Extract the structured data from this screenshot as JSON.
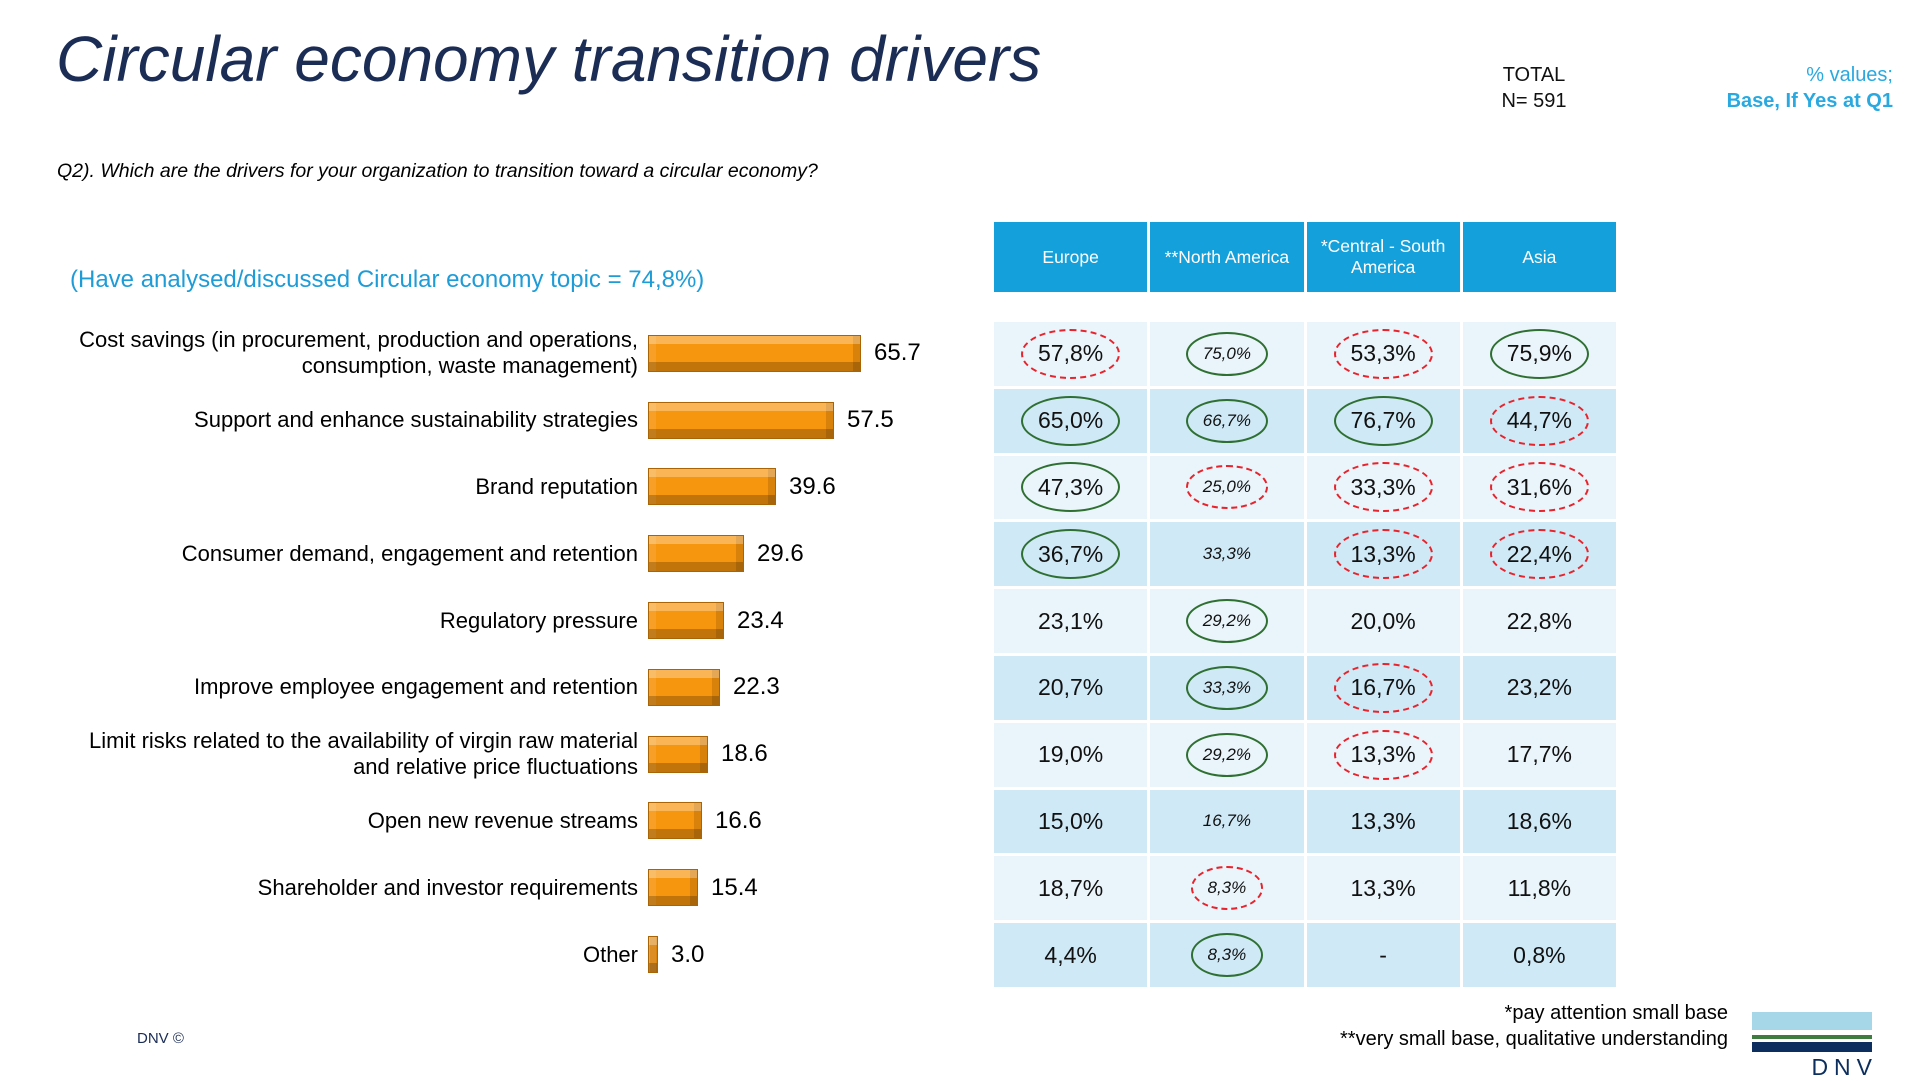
{
  "slide": {
    "title": "Circular economy transition drivers",
    "total": {
      "label": "TOTAL",
      "n": "N= 591"
    },
    "values_note": {
      "line1": "% values;",
      "line2": "Base, If Yes at Q1"
    },
    "question": "Q2). Which are the drivers for your organization to transition toward a circular economy?",
    "analysed_note": "(Have analysed/discussed Circular economy topic = 74,8%)",
    "footnotes": {
      "line1": "*pay attention small base",
      "line2": "**very small base, qualitative understanding"
    },
    "copyright": "DNV ©",
    "logo_text": "DNV"
  },
  "chart_data": {
    "type": "bar",
    "orientation": "horizontal",
    "title": "Circular economy transition drivers",
    "xlabel": "",
    "ylabel": "",
    "xlim": [
      0,
      100
    ],
    "grid": false,
    "bar_color": "#F6950E",
    "categories": [
      "Cost savings (in procurement, production and operations, consumption, waste management)",
      "Support and enhance sustainability strategies",
      "Brand reputation",
      "Consumer demand, engagement and retention",
      "Regulatory pressure",
      "Improve employee engagement and retention",
      "Limit risks related to the availability of virgin raw material and relative price fluctuations",
      "Open new revenue streams",
      "Shareholder and investor requirements",
      "Other"
    ],
    "values": [
      65.7,
      57.5,
      39.6,
      29.6,
      23.4,
      22.3,
      18.6,
      16.6,
      15.4,
      3.0
    ],
    "value_labels": [
      "65.7",
      "57.5",
      "39.6",
      "29.6",
      "23.4",
      "22.3",
      "18.6",
      "16.6",
      "15.4",
      "3.0"
    ],
    "regional_table": {
      "columns": [
        "Europe",
        "**North America",
        "*Central - South America",
        "Asia"
      ],
      "column_keys": [
        "europe",
        "north_america",
        "central_south_america",
        "asia"
      ],
      "mark_legend": {
        "green": "solid green ellipse (relatively high)",
        "red": "dashed red ellipse (relatively low)"
      },
      "rows": [
        {
          "cells": [
            {
              "text": "57,8%",
              "mark": "red"
            },
            {
              "text": "75,0%",
              "mark": "green"
            },
            {
              "text": "53,3%",
              "mark": "red"
            },
            {
              "text": "75,9%",
              "mark": "green"
            }
          ]
        },
        {
          "cells": [
            {
              "text": "65,0%",
              "mark": "green"
            },
            {
              "text": "66,7%",
              "mark": "green"
            },
            {
              "text": "76,7%",
              "mark": "green"
            },
            {
              "text": "44,7%",
              "mark": "red"
            }
          ]
        },
        {
          "cells": [
            {
              "text": "47,3%",
              "mark": "green"
            },
            {
              "text": "25,0%",
              "mark": "red"
            },
            {
              "text": "33,3%",
              "mark": "red"
            },
            {
              "text": "31,6%",
              "mark": "red"
            }
          ]
        },
        {
          "cells": [
            {
              "text": "36,7%",
              "mark": "green"
            },
            {
              "text": "33,3%",
              "mark": "none"
            },
            {
              "text": "13,3%",
              "mark": "red"
            },
            {
              "text": "22,4%",
              "mark": "red"
            }
          ]
        },
        {
          "cells": [
            {
              "text": "23,1%",
              "mark": "none"
            },
            {
              "text": "29,2%",
              "mark": "green"
            },
            {
              "text": "20,0%",
              "mark": "none"
            },
            {
              "text": "22,8%",
              "mark": "none"
            }
          ]
        },
        {
          "cells": [
            {
              "text": "20,7%",
              "mark": "none"
            },
            {
              "text": "33,3%",
              "mark": "green"
            },
            {
              "text": "16,7%",
              "mark": "red"
            },
            {
              "text": "23,2%",
              "mark": "none"
            }
          ]
        },
        {
          "cells": [
            {
              "text": "19,0%",
              "mark": "none"
            },
            {
              "text": "29,2%",
              "mark": "green"
            },
            {
              "text": "13,3%",
              "mark": "red"
            },
            {
              "text": "17,7%",
              "mark": "none"
            }
          ]
        },
        {
          "cells": [
            {
              "text": "15,0%",
              "mark": "none"
            },
            {
              "text": "16,7%",
              "mark": "none"
            },
            {
              "text": "13,3%",
              "mark": "none"
            },
            {
              "text": "18,6%",
              "mark": "none"
            }
          ]
        },
        {
          "cells": [
            {
              "text": "18,7%",
              "mark": "none"
            },
            {
              "text": "8,3%",
              "mark": "red"
            },
            {
              "text": "13,3%",
              "mark": "none"
            },
            {
              "text": "11,8%",
              "mark": "none"
            }
          ]
        },
        {
          "cells": [
            {
              "text": "4,4%",
              "mark": "none"
            },
            {
              "text": "8,3%",
              "mark": "green"
            },
            {
              "text": "-",
              "mark": "none"
            },
            {
              "text": "0,8%",
              "mark": "none"
            }
          ]
        }
      ]
    }
  },
  "colors": {
    "title_navy": "#1B2C55",
    "accent_blue": "#29A9E0",
    "table_header_blue": "#14A0DA",
    "row_light": "#EAF5FB",
    "row_dark": "#CFE9F6",
    "bar_orange": "#F6950E",
    "mark_green": "#2F7032",
    "mark_red": "#E8232B",
    "logo_navy": "#0C2E5E",
    "logo_lightblue": "#A5D7E8",
    "logo_green": "#3F7C3F"
  }
}
